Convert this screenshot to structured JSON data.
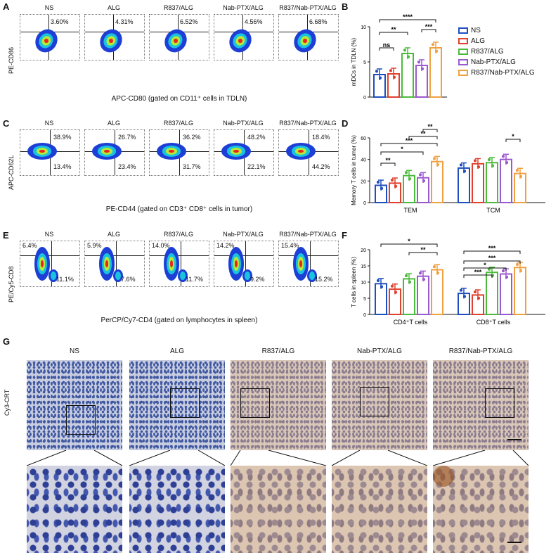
{
  "panels": {
    "A": "A",
    "B": "B",
    "C": "C",
    "D": "D",
    "E": "E",
    "F": "F",
    "G": "G"
  },
  "groups": [
    "NS",
    "ALG",
    "R837/ALG",
    "Nab-PTX/ALG",
    "R837/Nab-PTX/ALG"
  ],
  "colors": {
    "NS": "#1f4fbf",
    "ALG": "#e0402e",
    "R837/ALG": "#4cbb3c",
    "Nab-PTX/ALG": "#9b59d0",
    "R837/Nab-PTX/ALG": "#f0a040"
  },
  "A": {
    "ylabel": "PE-CD86",
    "xlabel": "APC-CD80 (gated on CD11⁺ cells in TDLN)",
    "pct": [
      "3.60%",
      "4.31%",
      "6.52%",
      "4.56%",
      "6.68%"
    ]
  },
  "C": {
    "ylabel": "APC-CD62L",
    "xlabel": "PE-CD44 (gated on CD3⁺ CD8⁺ cells in tumor)",
    "upper": [
      "38.9%",
      "26.7%",
      "36.2%",
      "48.2%",
      "18.4%"
    ],
    "lower": [
      "13.4%",
      "23.4%",
      "31.7%",
      "22.1%",
      "44.2%"
    ]
  },
  "E": {
    "ylabel": "PE/Cy5-CD8",
    "xlabel": "PerCP/Cy7-CD4 (gated on lymphocytes in spleen)",
    "upper": [
      "6.4%",
      "5.9%",
      "14.0%",
      "14.2%",
      "15.4%"
    ],
    "lower": [
      "11.1%",
      "7.6%",
      "11.7%",
      "9.2%",
      "15.2%"
    ]
  },
  "G": {
    "ylabel": "Cy3-CRT"
  },
  "chart_data": [
    {
      "type": "bar",
      "panel": "B",
      "ylabel": "mDCs in TDLN (%)",
      "ylim": [
        0,
        10
      ],
      "yticks": [
        "0",
        "5",
        "10"
      ],
      "categories": [
        "NS",
        "ALG",
        "R837/ALG",
        "Nab-PTX/ALG",
        "R837/Nab-PTX/ALG"
      ],
      "values": [
        3.2,
        3.3,
        6.2,
        4.5,
        7.0
      ],
      "significance": [
        "ns",
        "**",
        "****",
        "***"
      ]
    },
    {
      "type": "bar",
      "panel": "D",
      "ylabel": "Memory T cells in tumor (%)",
      "ylim": [
        0,
        60
      ],
      "yticks": [
        "0",
        "20",
        "40",
        "60"
      ],
      "categories": [
        "TEM",
        "TCM"
      ],
      "series": [
        {
          "name": "NS",
          "values": [
            16,
            32
          ]
        },
        {
          "name": "ALG",
          "values": [
            18,
            36
          ]
        },
        {
          "name": "R837/ALG",
          "values": [
            25,
            37
          ]
        },
        {
          "name": "Nab-PTX/ALG",
          "values": [
            23,
            40
          ]
        },
        {
          "name": "R837/Nab-PTX/ALG",
          "values": [
            38,
            27
          ]
        }
      ],
      "significance": [
        "**",
        "*",
        "***",
        "**",
        "**",
        "*"
      ]
    },
    {
      "type": "bar",
      "panel": "F",
      "ylabel": "T cells in spleen (%)",
      "ylim": [
        0,
        20
      ],
      "yticks": [
        "0",
        "5",
        "10",
        "15",
        "20"
      ],
      "categories": [
        "CD4⁺T cells",
        "CD8⁺T cells"
      ],
      "series": [
        {
          "name": "NS",
          "values": [
            9.5,
            6.5
          ]
        },
        {
          "name": "ALG",
          "values": [
            7.8,
            6.0
          ]
        },
        {
          "name": "R837/ALG",
          "values": [
            11.0,
            13.0
          ]
        },
        {
          "name": "Nab-PTX/ALG",
          "values": [
            11.8,
            12.5
          ]
        },
        {
          "name": "R837/Nab-PTX/ALG",
          "values": [
            13.8,
            14.5
          ]
        }
      ],
      "significance": [
        "*",
        "**",
        "***",
        "*",
        "***",
        "***"
      ]
    }
  ]
}
